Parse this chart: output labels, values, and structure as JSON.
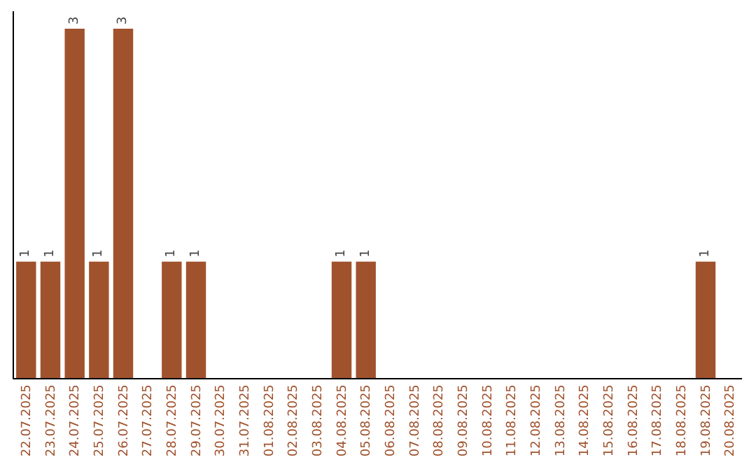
{
  "chart_data": {
    "type": "bar",
    "categories": [
      "22.07.2025",
      "23.07.2025",
      "24.07.2025",
      "25.07.2025",
      "26.07.2025",
      "27.07.2025",
      "28.07.2025",
      "29.07.2025",
      "30.07.2025",
      "31.07.2025",
      "01.08.2025",
      "02.08.2025",
      "03.08.2025",
      "04.08.2025",
      "05.08.2025",
      "06.08.2025",
      "07.08.2025",
      "08.08.2025",
      "09.08.2025",
      "10.08.2025",
      "11.08.2025",
      "12.08.2025",
      "13.08.2025",
      "14.08.2025",
      "15.08.2025",
      "16.08.2025",
      "17.08.2025",
      "18.08.2025",
      "19.08.2025",
      "20.08.2025"
    ],
    "values": [
      1,
      1,
      3,
      1,
      3,
      0,
      1,
      1,
      0,
      0,
      0,
      0,
      0,
      1,
      1,
      0,
      0,
      0,
      0,
      0,
      0,
      0,
      0,
      0,
      0,
      0,
      0,
      0,
      1,
      0
    ],
    "value_labels": [
      "1",
      "1",
      "3",
      "1",
      "3",
      null,
      "1",
      "1",
      null,
      null,
      null,
      null,
      null,
      "1",
      "1",
      null,
      null,
      null,
      null,
      null,
      null,
      null,
      null,
      null,
      null,
      null,
      null,
      null,
      "1",
      null
    ],
    "color": "#a0522d",
    "ylim": [
      0,
      3.15
    ],
    "tick_labels": "x"
  }
}
